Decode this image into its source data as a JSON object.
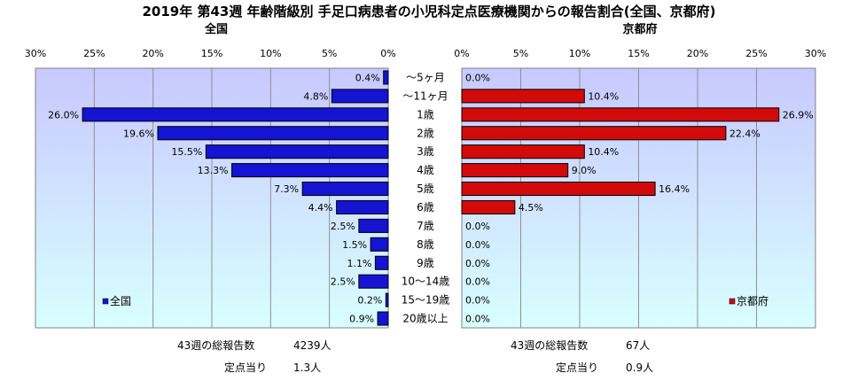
{
  "chart_data": {
    "type": "bar",
    "title": "2019年 第43週 年齢階級別 手足口病患者の小児科定点医療機関からの報告割合(全国、京都府)",
    "unit": "%",
    "categories": [
      "～5ヶ月",
      "～11ヶ月",
      "1歳",
      "2歳",
      "3歳",
      "4歳",
      "5歳",
      "6歳",
      "7歳",
      "8歳",
      "9歳",
      "10～14歳",
      "15～19歳",
      "20歳以上"
    ],
    "xlim": [
      0,
      30
    ],
    "x_ticks": [
      0,
      5,
      10,
      15,
      20,
      25,
      30
    ],
    "series": [
      {
        "name": "全国",
        "panel_title": "全国",
        "color": "#1414d2",
        "values": [
          0.4,
          4.8,
          26.0,
          19.6,
          15.5,
          13.3,
          7.3,
          4.4,
          2.5,
          1.5,
          1.1,
          2.5,
          0.2,
          0.9
        ],
        "labels": [
          "0.4%",
          "4.8%",
          "26.0%",
          "19.6%",
          "15.5%",
          "13.3%",
          "7.3%",
          "4.4%",
          "2.5%",
          "1.5%",
          "1.1%",
          "2.5%",
          "0.2%",
          "0.9%"
        ]
      },
      {
        "name": "京都府",
        "panel_title": "京都府",
        "color": "#d20a0a",
        "values": [
          0.0,
          10.4,
          26.9,
          22.4,
          10.4,
          9.0,
          16.4,
          4.5,
          0.0,
          0.0,
          0.0,
          0.0,
          0.0,
          0.0
        ],
        "labels": [
          "0.0%",
          "10.4%",
          "26.9%",
          "22.4%",
          "10.4%",
          "9.0%",
          "16.4%",
          "4.5%",
          "0.0%",
          "0.0%",
          "0.0%",
          "0.0%",
          "0.0%",
          "0.0%"
        ]
      }
    ],
    "tick_labels": [
      "0%",
      "5%",
      "10%",
      "15%",
      "20%",
      "25%",
      "30%"
    ],
    "legend_placement": "bottom-left / bottom-right of each panel"
  },
  "footer": {
    "national": {
      "total_label": "43週の総報告数",
      "total_value": "4239人",
      "per_label": "定点当り",
      "per_value": "1.3人"
    },
    "kyoto": {
      "total_label": "43週の総報告数",
      "total_value": "67人",
      "per_label": "定点当り",
      "per_value": "0.9人"
    }
  },
  "colors": {
    "plot_bg_top": "#c8c8ff",
    "plot_bg_bottom": "#d8ffff"
  }
}
